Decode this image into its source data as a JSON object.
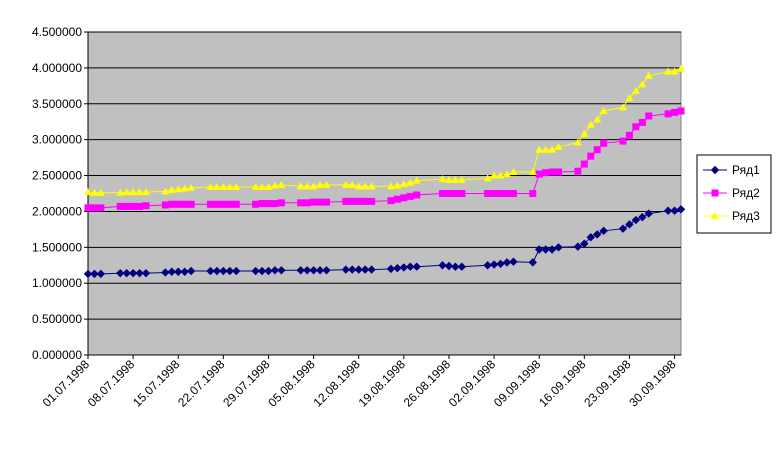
{
  "chart_data": {
    "type": "line",
    "title": "",
    "xlabel": "",
    "ylabel": "",
    "ylim": [
      0,
      4.5
    ],
    "y_ticks": [
      "0.000000",
      "0.500000",
      "1.000000",
      "1.500000",
      "2.000000",
      "2.500000",
      "3.000000",
      "3.500000",
      "4.000000",
      "4.500000"
    ],
    "x_ticks": [
      "01.07.1998",
      "08.07.1998",
      "15.07.1998",
      "22.07.1998",
      "29.07.1998",
      "05.08.1998",
      "12.08.1998",
      "19.08.1998",
      "26.08.1998",
      "02.09.1998",
      "09.09.1998",
      "16.09.1998",
      "23.09.1998",
      "30.09.1998"
    ],
    "xlim": [
      "1998-07-01",
      "1998-10-01"
    ],
    "grid": true,
    "legend_position": "right",
    "plot_background": "#c0c0c0",
    "series": [
      {
        "name": "Ряд1",
        "color": "#000080",
        "marker": "diamond",
        "points": [
          [
            "1998-07-01",
            1.13
          ],
          [
            "1998-07-02",
            1.13
          ],
          [
            "1998-07-03",
            1.13
          ],
          [
            "1998-07-06",
            1.14
          ],
          [
            "1998-07-07",
            1.14
          ],
          [
            "1998-07-08",
            1.14
          ],
          [
            "1998-07-09",
            1.14
          ],
          [
            "1998-07-10",
            1.14
          ],
          [
            "1998-07-13",
            1.15
          ],
          [
            "1998-07-14",
            1.16
          ],
          [
            "1998-07-15",
            1.16
          ],
          [
            "1998-07-16",
            1.16
          ],
          [
            "1998-07-17",
            1.17
          ],
          [
            "1998-07-20",
            1.17
          ],
          [
            "1998-07-21",
            1.17
          ],
          [
            "1998-07-22",
            1.17
          ],
          [
            "1998-07-23",
            1.17
          ],
          [
            "1998-07-24",
            1.17
          ],
          [
            "1998-07-27",
            1.17
          ],
          [
            "1998-07-28",
            1.17
          ],
          [
            "1998-07-29",
            1.17
          ],
          [
            "1998-07-30",
            1.18
          ],
          [
            "1998-07-31",
            1.18
          ],
          [
            "1998-08-03",
            1.18
          ],
          [
            "1998-08-04",
            1.18
          ],
          [
            "1998-08-05",
            1.18
          ],
          [
            "1998-08-06",
            1.18
          ],
          [
            "1998-08-07",
            1.18
          ],
          [
            "1998-08-10",
            1.19
          ],
          [
            "1998-08-11",
            1.19
          ],
          [
            "1998-08-12",
            1.19
          ],
          [
            "1998-08-13",
            1.19
          ],
          [
            "1998-08-14",
            1.19
          ],
          [
            "1998-08-17",
            1.2
          ],
          [
            "1998-08-18",
            1.21
          ],
          [
            "1998-08-19",
            1.22
          ],
          [
            "1998-08-20",
            1.23
          ],
          [
            "1998-08-21",
            1.23
          ],
          [
            "1998-08-25",
            1.25
          ],
          [
            "1998-08-26",
            1.24
          ],
          [
            "1998-08-27",
            1.23
          ],
          [
            "1998-08-28",
            1.23
          ],
          [
            "1998-09-01",
            1.25
          ],
          [
            "1998-09-02",
            1.26
          ],
          [
            "1998-09-03",
            1.27
          ],
          [
            "1998-09-04",
            1.29
          ],
          [
            "1998-09-05",
            1.3
          ],
          [
            "1998-09-08",
            1.29
          ],
          [
            "1998-09-09",
            1.47
          ],
          [
            "1998-09-10",
            1.47
          ],
          [
            "1998-09-11",
            1.47
          ],
          [
            "1998-09-12",
            1.5
          ],
          [
            "1998-09-15",
            1.51
          ],
          [
            "1998-09-16",
            1.55
          ],
          [
            "1998-09-17",
            1.64
          ],
          [
            "1998-09-18",
            1.68
          ],
          [
            "1998-09-19",
            1.73
          ],
          [
            "1998-09-22",
            1.76
          ],
          [
            "1998-09-23",
            1.82
          ],
          [
            "1998-09-24",
            1.88
          ],
          [
            "1998-09-25",
            1.92
          ],
          [
            "1998-09-26",
            1.97
          ],
          [
            "1998-09-29",
            2.01
          ],
          [
            "1998-09-30",
            2.01
          ],
          [
            "1998-10-01",
            2.03
          ]
        ]
      },
      {
        "name": "Ряд2",
        "color": "#ff00ff",
        "marker": "square",
        "points": [
          [
            "1998-07-01",
            2.05
          ],
          [
            "1998-07-02",
            2.05
          ],
          [
            "1998-07-03",
            2.05
          ],
          [
            "1998-07-06",
            2.07
          ],
          [
            "1998-07-07",
            2.07
          ],
          [
            "1998-07-08",
            2.07
          ],
          [
            "1998-07-09",
            2.07
          ],
          [
            "1998-07-10",
            2.08
          ],
          [
            "1998-07-13",
            2.09
          ],
          [
            "1998-07-14",
            2.1
          ],
          [
            "1998-07-15",
            2.1
          ],
          [
            "1998-07-16",
            2.1
          ],
          [
            "1998-07-17",
            2.1
          ],
          [
            "1998-07-20",
            2.1
          ],
          [
            "1998-07-21",
            2.1
          ],
          [
            "1998-07-22",
            2.1
          ],
          [
            "1998-07-23",
            2.1
          ],
          [
            "1998-07-24",
            2.1
          ],
          [
            "1998-07-27",
            2.1
          ],
          [
            "1998-07-28",
            2.11
          ],
          [
            "1998-07-29",
            2.11
          ],
          [
            "1998-07-30",
            2.11
          ],
          [
            "1998-07-31",
            2.12
          ],
          [
            "1998-08-03",
            2.12
          ],
          [
            "1998-08-04",
            2.12
          ],
          [
            "1998-08-05",
            2.13
          ],
          [
            "1998-08-06",
            2.13
          ],
          [
            "1998-08-07",
            2.13
          ],
          [
            "1998-08-10",
            2.14
          ],
          [
            "1998-08-11",
            2.14
          ],
          [
            "1998-08-12",
            2.14
          ],
          [
            "1998-08-13",
            2.14
          ],
          [
            "1998-08-14",
            2.14
          ],
          [
            "1998-08-17",
            2.15
          ],
          [
            "1998-08-18",
            2.17
          ],
          [
            "1998-08-19",
            2.19
          ],
          [
            "1998-08-20",
            2.21
          ],
          [
            "1998-08-21",
            2.23
          ],
          [
            "1998-08-25",
            2.25
          ],
          [
            "1998-08-26",
            2.25
          ],
          [
            "1998-08-27",
            2.25
          ],
          [
            "1998-08-28",
            2.25
          ],
          [
            "1998-09-01",
            2.25
          ],
          [
            "1998-09-02",
            2.25
          ],
          [
            "1998-09-03",
            2.25
          ],
          [
            "1998-09-04",
            2.25
          ],
          [
            "1998-09-05",
            2.25
          ],
          [
            "1998-09-08",
            2.25
          ],
          [
            "1998-09-09",
            2.52
          ],
          [
            "1998-09-10",
            2.54
          ],
          [
            "1998-09-11",
            2.55
          ],
          [
            "1998-09-12",
            2.55
          ],
          [
            "1998-09-15",
            2.56
          ],
          [
            "1998-09-16",
            2.66
          ],
          [
            "1998-09-17",
            2.77
          ],
          [
            "1998-09-18",
            2.86
          ],
          [
            "1998-09-19",
            2.95
          ],
          [
            "1998-09-22",
            2.98
          ],
          [
            "1998-09-23",
            3.06
          ],
          [
            "1998-09-24",
            3.18
          ],
          [
            "1998-09-25",
            3.24
          ],
          [
            "1998-09-26",
            3.33
          ],
          [
            "1998-09-29",
            3.36
          ],
          [
            "1998-09-30",
            3.38
          ],
          [
            "1998-10-01",
            3.4
          ]
        ]
      },
      {
        "name": "Ряд3",
        "color": "#ffff00",
        "marker": "triangle",
        "points": [
          [
            "1998-07-01",
            2.27
          ],
          [
            "1998-07-02",
            2.26
          ],
          [
            "1998-07-03",
            2.26
          ],
          [
            "1998-07-06",
            2.26
          ],
          [
            "1998-07-07",
            2.27
          ],
          [
            "1998-07-08",
            2.27
          ],
          [
            "1998-07-09",
            2.27
          ],
          [
            "1998-07-10",
            2.27
          ],
          [
            "1998-07-13",
            2.28
          ],
          [
            "1998-07-14",
            2.3
          ],
          [
            "1998-07-15",
            2.31
          ],
          [
            "1998-07-16",
            2.32
          ],
          [
            "1998-07-17",
            2.33
          ],
          [
            "1998-07-20",
            2.34
          ],
          [
            "1998-07-21",
            2.34
          ],
          [
            "1998-07-22",
            2.34
          ],
          [
            "1998-07-23",
            2.34
          ],
          [
            "1998-07-24",
            2.34
          ],
          [
            "1998-07-27",
            2.34
          ],
          [
            "1998-07-28",
            2.34
          ],
          [
            "1998-07-29",
            2.34
          ],
          [
            "1998-07-30",
            2.36
          ],
          [
            "1998-07-31",
            2.37
          ],
          [
            "1998-08-03",
            2.35
          ],
          [
            "1998-08-04",
            2.35
          ],
          [
            "1998-08-05",
            2.35
          ],
          [
            "1998-08-06",
            2.37
          ],
          [
            "1998-08-07",
            2.37
          ],
          [
            "1998-08-10",
            2.37
          ],
          [
            "1998-08-11",
            2.37
          ],
          [
            "1998-08-12",
            2.35
          ],
          [
            "1998-08-13",
            2.35
          ],
          [
            "1998-08-14",
            2.35
          ],
          [
            "1998-08-17",
            2.35
          ],
          [
            "1998-08-18",
            2.36
          ],
          [
            "1998-08-19",
            2.38
          ],
          [
            "1998-08-20",
            2.4
          ],
          [
            "1998-08-21",
            2.43
          ],
          [
            "1998-08-25",
            2.45
          ],
          [
            "1998-08-26",
            2.44
          ],
          [
            "1998-08-27",
            2.44
          ],
          [
            "1998-08-28",
            2.44
          ],
          [
            "1998-09-01",
            2.46
          ],
          [
            "1998-09-02",
            2.5
          ],
          [
            "1998-09-03",
            2.5
          ],
          [
            "1998-09-04",
            2.52
          ],
          [
            "1998-09-05",
            2.55
          ],
          [
            "1998-09-08",
            2.55
          ],
          [
            "1998-09-09",
            2.86
          ],
          [
            "1998-09-10",
            2.86
          ],
          [
            "1998-09-11",
            2.86
          ],
          [
            "1998-09-12",
            2.9
          ],
          [
            "1998-09-15",
            2.96
          ],
          [
            "1998-09-16",
            3.08
          ],
          [
            "1998-09-17",
            3.21
          ],
          [
            "1998-09-18",
            3.28
          ],
          [
            "1998-09-19",
            3.4
          ],
          [
            "1998-09-22",
            3.45
          ],
          [
            "1998-09-23",
            3.58
          ],
          [
            "1998-09-24",
            3.68
          ],
          [
            "1998-09-25",
            3.77
          ],
          [
            "1998-09-26",
            3.89
          ],
          [
            "1998-09-29",
            3.95
          ],
          [
            "1998-09-30",
            3.95
          ],
          [
            "1998-10-01",
            3.99
          ]
        ]
      }
    ]
  }
}
